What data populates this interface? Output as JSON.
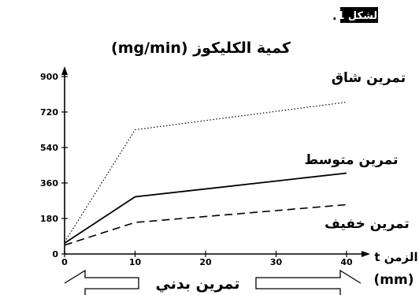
{
  "figure": {
    "label": "الشكل 1",
    "dot": "."
  },
  "chart_data": {
    "type": "line",
    "ylabel": "كمية الكليكوز (mg/min)",
    "xlabel": "الزمن t",
    "xunit": "(mm)",
    "xlim": [
      0,
      40
    ],
    "ylim": [
      0,
      900
    ],
    "xticks": [
      0,
      10,
      20,
      30,
      40
    ],
    "yticks": [
      0,
      180,
      360,
      540,
      720,
      900
    ],
    "series": [
      {
        "name": "تمرين شاق",
        "style": "dotted",
        "x": [
          0,
          10,
          40
        ],
        "y": [
          60,
          630,
          770
        ]
      },
      {
        "name": "تمرين متوسط",
        "style": "solid",
        "x": [
          0,
          10,
          40
        ],
        "y": [
          55,
          290,
          410
        ]
      },
      {
        "name": "تمرين خفيف",
        "style": "dashed",
        "x": [
          0,
          10,
          40
        ],
        "y": [
          45,
          160,
          250
        ]
      }
    ],
    "exercise_arrow_label": "تمرين بدني",
    "line_color": "#000000"
  }
}
